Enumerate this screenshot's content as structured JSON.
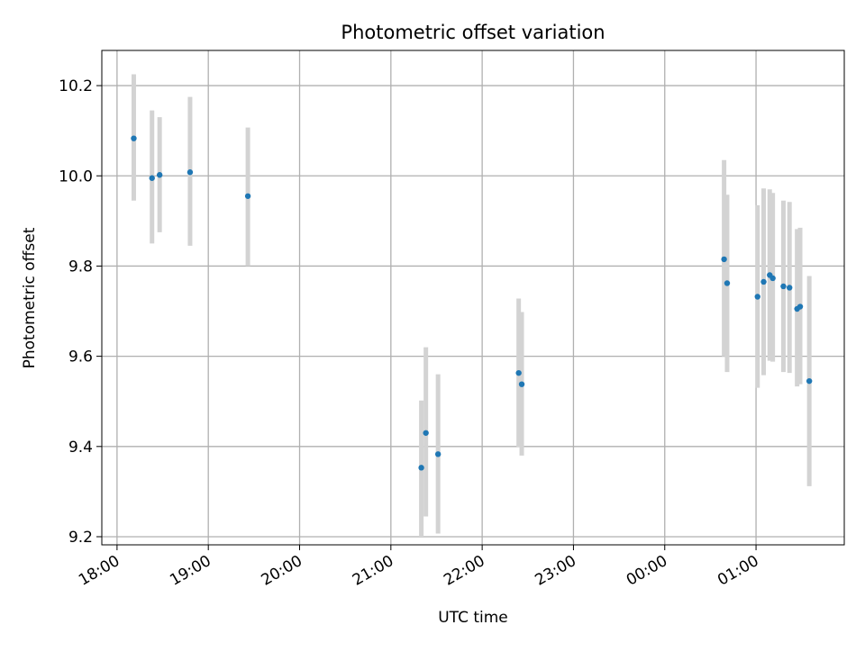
{
  "chart_data": {
    "type": "scatter",
    "title": "Photometric offset variation",
    "xlabel": "UTC time",
    "ylabel": "Photometric offset",
    "x_ticks": [
      "18:00",
      "19:00",
      "20:00",
      "21:00",
      "22:00",
      "23:00",
      "00:00",
      "01:00"
    ],
    "y_ticks": [
      "9.2",
      "9.4",
      "9.6",
      "9.8",
      "10.0",
      "10.2"
    ],
    "x_range": [
      "17:50",
      "01:58"
    ],
    "ylim": [
      9.182,
      10.278
    ],
    "grid": true,
    "colors": {
      "point": "#1f77b4",
      "errorbar": "#d3d3d3",
      "grid": "#b0b0b0"
    },
    "points": [
      {
        "t": "18:11",
        "y": 10.083,
        "lo": 9.945,
        "hi": 10.225
      },
      {
        "t": "18:23",
        "y": 9.995,
        "lo": 9.85,
        "hi": 10.145
      },
      {
        "t": "18:28",
        "y": 10.002,
        "lo": 9.875,
        "hi": 10.13
      },
      {
        "t": "18:48",
        "y": 10.008,
        "lo": 9.845,
        "hi": 10.175
      },
      {
        "t": "19:26",
        "y": 9.955,
        "lo": 9.8,
        "hi": 10.107
      },
      {
        "t": "21:20",
        "y": 9.353,
        "lo": 9.2,
        "hi": 9.502
      },
      {
        "t": "21:23",
        "y": 9.43,
        "lo": 9.245,
        "hi": 9.62
      },
      {
        "t": "21:31",
        "y": 9.383,
        "lo": 9.207,
        "hi": 9.56
      },
      {
        "t": "22:24",
        "y": 9.563,
        "lo": 9.398,
        "hi": 9.728
      },
      {
        "t": "22:26",
        "y": 9.538,
        "lo": 9.38,
        "hi": 9.698
      },
      {
        "t": "00:39",
        "y": 9.815,
        "lo": 9.6,
        "hi": 10.035
      },
      {
        "t": "00:41",
        "y": 9.762,
        "lo": 9.565,
        "hi": 9.958
      },
      {
        "t": "01:01",
        "y": 9.732,
        "lo": 9.53,
        "hi": 9.935
      },
      {
        "t": "01:05",
        "y": 9.765,
        "lo": 9.558,
        "hi": 9.972
      },
      {
        "t": "01:09",
        "y": 9.78,
        "lo": 9.59,
        "hi": 9.97
      },
      {
        "t": "01:11",
        "y": 9.773,
        "lo": 9.588,
        "hi": 9.962
      },
      {
        "t": "01:18",
        "y": 9.755,
        "lo": 9.565,
        "hi": 9.945
      },
      {
        "t": "01:22",
        "y": 9.752,
        "lo": 9.563,
        "hi": 9.942
      },
      {
        "t": "01:27",
        "y": 9.705,
        "lo": 9.533,
        "hi": 9.882
      },
      {
        "t": "01:29",
        "y": 9.71,
        "lo": 9.538,
        "hi": 9.885
      },
      {
        "t": "01:35",
        "y": 9.545,
        "lo": 9.312,
        "hi": 9.778
      }
    ]
  }
}
